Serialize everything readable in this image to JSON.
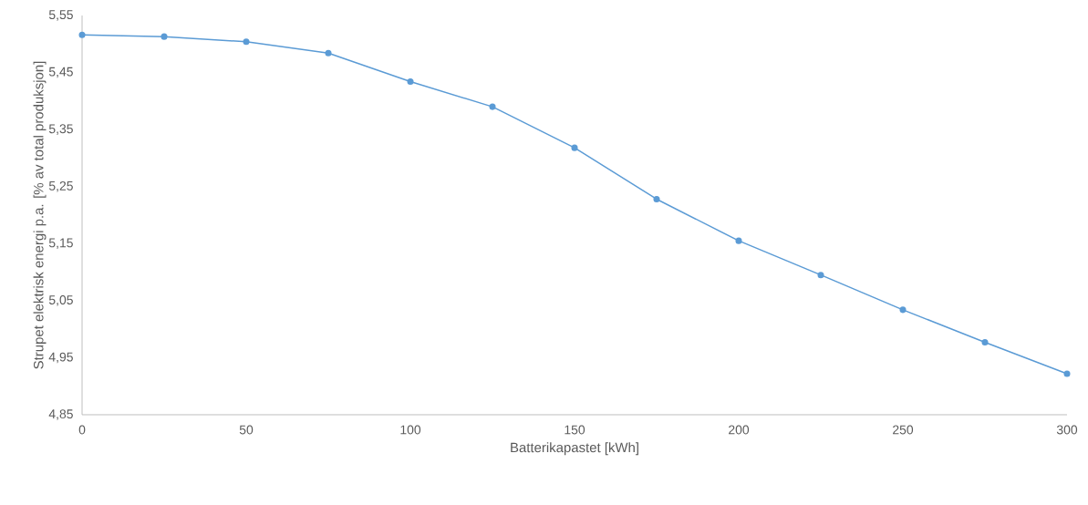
{
  "chart_data": {
    "type": "line",
    "xlabel": "Batterikapastet [kWh]",
    "ylabel": "Strupet elektrisk energi p.a. [% av total produksjon]",
    "x": [
      0,
      25,
      50,
      75,
      100,
      125,
      150,
      175,
      200,
      225,
      250,
      275,
      300
    ],
    "series": [
      {
        "color": "#5b9bd5",
        "values": [
          5.516,
          5.513,
          5.504,
          5.484,
          5.434,
          5.39,
          5.318,
          5.228,
          5.155,
          5.095,
          5.034,
          4.977,
          4.922
        ]
      }
    ],
    "xlim": [
      0,
      300
    ],
    "ylim": [
      4.85,
      5.55
    ],
    "xticks": [
      0,
      50,
      100,
      150,
      200,
      250,
      300
    ],
    "yticks": [
      {
        "value": 4.85,
        "label": "4,85"
      },
      {
        "value": 4.95,
        "label": "4,95"
      },
      {
        "value": 5.05,
        "label": "5,05"
      },
      {
        "value": 5.15,
        "label": "5,15"
      },
      {
        "value": 5.25,
        "label": "5,25"
      },
      {
        "value": 5.35,
        "label": "5,35"
      },
      {
        "value": 5.45,
        "label": "5,45"
      },
      {
        "value": 5.55,
        "label": "5,55"
      }
    ],
    "marker": "circle",
    "line_style": "solid"
  }
}
